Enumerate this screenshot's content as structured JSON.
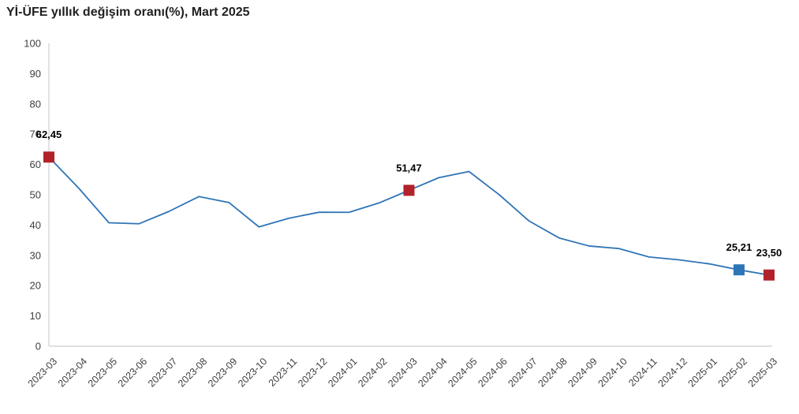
{
  "title": "Yİ-ÜFE yıllık değişim oranı(%), Mart 2025",
  "chart_data": {
    "type": "line",
    "title": "Yİ-ÜFE yıllık değişim oranı(%), Mart 2025",
    "x": [
      "2023-03",
      "2023-04",
      "2023-05",
      "2023-06",
      "2023-07",
      "2023-08",
      "2023-09",
      "2023-10",
      "2023-11",
      "2023-12",
      "2024-01",
      "2024-02",
      "2024-03",
      "2024-04",
      "2024-05",
      "2024-06",
      "2024-07",
      "2024-08",
      "2024-09",
      "2024-10",
      "2024-11",
      "2024-12",
      "2025-01",
      "2025-02",
      "2025-03"
    ],
    "series": [
      {
        "name": "Yİ-ÜFE yıllık değişim oranı (%)",
        "values": [
          62.45,
          52.11,
          40.76,
          40.42,
          44.5,
          49.41,
          47.44,
          39.39,
          42.25,
          44.22,
          44.2,
          47.29,
          51.47,
          55.66,
          57.68,
          50.09,
          41.37,
          35.75,
          33.09,
          32.24,
          29.47,
          28.52,
          27.2,
          25.21,
          23.5
        ]
      }
    ],
    "ylim": [
      0,
      100
    ],
    "yticks": [
      0,
      10,
      20,
      30,
      40,
      50,
      60,
      70,
      80,
      90,
      100
    ],
    "grid": false,
    "legend_position": "none",
    "xlabel": "",
    "ylabel": "",
    "annotations": [
      {
        "x": "2023-03",
        "value": 62.45,
        "label": "62,45",
        "marker": "red"
      },
      {
        "x": "2024-03",
        "value": 51.47,
        "label": "51,47",
        "marker": "red"
      },
      {
        "x": "2025-02",
        "value": 25.21,
        "label": "25,21",
        "marker": "blue"
      },
      {
        "x": "2025-03",
        "value": 23.5,
        "label": "23,50",
        "marker": "red"
      }
    ],
    "colors": {
      "line": "#2e75b6",
      "marker_red": "#b2222a",
      "marker_blue": "#2e75b6",
      "axis_line": "#d6d6d6",
      "tick_text": "#404040",
      "annotation_text": "#000000"
    }
  }
}
